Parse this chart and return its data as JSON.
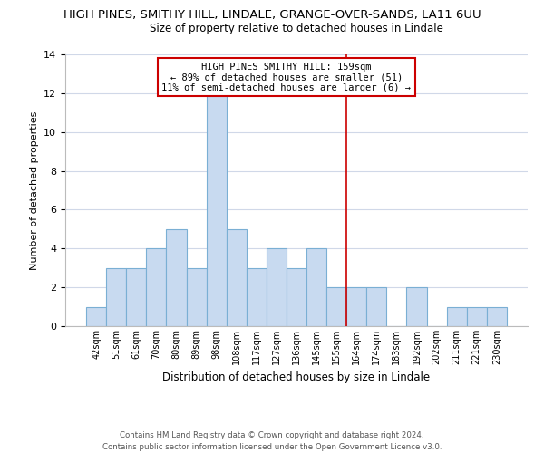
{
  "title": "HIGH PINES, SMITHY HILL, LINDALE, GRANGE-OVER-SANDS, LA11 6UU",
  "subtitle": "Size of property relative to detached houses in Lindale",
  "xlabel": "Distribution of detached houses by size in Lindale",
  "ylabel": "Number of detached properties",
  "bar_labels": [
    "42sqm",
    "51sqm",
    "61sqm",
    "70sqm",
    "80sqm",
    "89sqm",
    "98sqm",
    "108sqm",
    "117sqm",
    "127sqm",
    "136sqm",
    "145sqm",
    "155sqm",
    "164sqm",
    "174sqm",
    "183sqm",
    "192sqm",
    "202sqm",
    "211sqm",
    "221sqm",
    "230sqm"
  ],
  "bar_values": [
    1,
    3,
    3,
    4,
    5,
    3,
    12,
    5,
    3,
    4,
    3,
    4,
    2,
    2,
    2,
    0,
    2,
    0,
    1,
    1,
    1
  ],
  "bar_color": "#c8daf0",
  "bar_edge_color": "#7aafd4",
  "ylim": [
    0,
    14
  ],
  "yticks": [
    0,
    2,
    4,
    6,
    8,
    10,
    12,
    14
  ],
  "property_line_x": 12.5,
  "property_line_color": "#cc0000",
  "annotation_title": "HIGH PINES SMITHY HILL: 159sqm",
  "annotation_line1": "← 89% of detached houses are smaller (51)",
  "annotation_line2": "11% of semi-detached houses are larger (6) →",
  "footer_line1": "Contains HM Land Registry data © Crown copyright and database right 2024.",
  "footer_line2": "Contains public sector information licensed under the Open Government Licence v3.0.",
  "background_color": "#ffffff",
  "grid_color": "#d0d8e8"
}
